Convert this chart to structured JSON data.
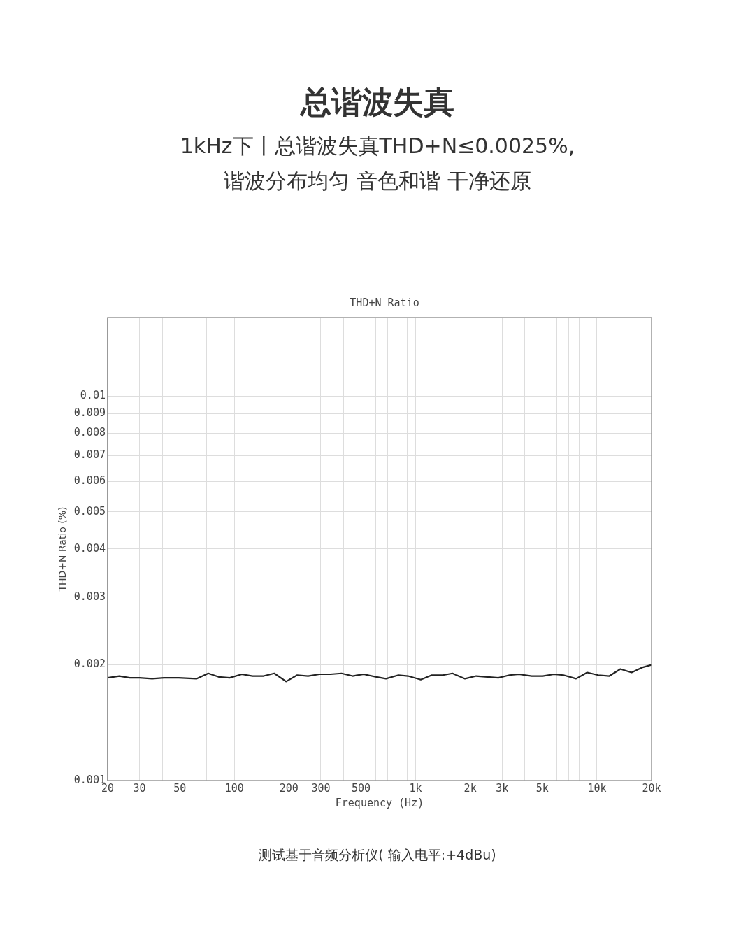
{
  "chart_data": {
    "type": "line",
    "title": "总谐波失真",
    "subtitle": "1kHz下丨总谐波失真THD+N≤0.0025%,\n谐波分布均匀 音色和谐 干净还原",
    "annotations": [
      "THD+N Ratio",
      "测试基于音频分析仪( 输入电平:+4dBu)"
    ],
    "xlabel": "Frequency (Hz)",
    "ylabel": "THD+N Ratio (%)",
    "log": "xy",
    "grid": true,
    "legend": false,
    "marker": "none",
    "line_style": "solid",
    "xlim": [
      20,
      20000
    ],
    "ylim": [
      0.001,
      0.016
    ],
    "xticks": [
      20,
      30,
      {
        "value": 40,
        "label": null
      },
      50,
      {
        "value": 60,
        "label": null
      },
      {
        "value": 70,
        "label": null
      },
      {
        "value": 80,
        "label": null
      },
      {
        "value": 90,
        "label": null
      },
      100,
      200,
      300,
      {
        "value": 400,
        "label": null
      },
      500,
      {
        "value": 600,
        "label": null
      },
      {
        "value": 700,
        "label": null
      },
      {
        "value": 800,
        "label": null
      },
      {
        "value": 900,
        "label": null
      },
      {
        "value": 1000,
        "label": "1k"
      },
      {
        "value": 2000,
        "label": "2k"
      },
      {
        "value": 3000,
        "label": "3k"
      },
      {
        "value": 4000,
        "label": null
      },
      {
        "value": 5000,
        "label": "5k"
      },
      {
        "value": 6000,
        "label": null
      },
      {
        "value": 7000,
        "label": null
      },
      {
        "value": 8000,
        "label": null
      },
      {
        "value": 9000,
        "label": null
      },
      {
        "value": 10000,
        "label": "10k"
      },
      {
        "value": 20000,
        "label": "20k"
      }
    ],
    "yticks": [
      0.001,
      0.002,
      0.003,
      0.004,
      0.005,
      0.006,
      0.007,
      0.008,
      0.009,
      0.01
    ],
    "x": [
      20,
      23.2,
      26.5,
      30,
      35.2,
      40.9,
      49.3,
      61.8,
      71.8,
      81.9,
      94.3,
      110,
      126,
      145,
      166,
      193,
      222,
      255,
      294,
      339,
      390,
      449,
      517,
      607,
      686,
      804,
      908,
      1067,
      1227,
      1413,
      1596,
      1871,
      2157,
      2483,
      2858,
      3290,
      3717,
      4365,
      5024,
      5783,
      6537,
      7671,
      8833,
      10166,
      11700,
      13480,
      15520,
      17870,
      20000
    ],
    "series": [
      {
        "color": "#222222",
        "values": [
          0.00185,
          0.00187,
          0.00185,
          0.00185,
          0.00184,
          0.00185,
          0.00185,
          0.00184,
          0.0019,
          0.00186,
          0.00185,
          0.00189,
          0.00187,
          0.00187,
          0.0019,
          0.00181,
          0.00188,
          0.00187,
          0.00189,
          0.00189,
          0.0019,
          0.00187,
          0.00189,
          0.00186,
          0.00184,
          0.00188,
          0.00187,
          0.00183,
          0.00188,
          0.00188,
          0.0019,
          0.00184,
          0.00187,
          0.00186,
          0.00185,
          0.00188,
          0.00189,
          0.00187,
          0.00187,
          0.00189,
          0.00188,
          0.00184,
          0.00191,
          0.00188,
          0.00187,
          0.00195,
          0.00191,
          0.00197,
          0.002
        ]
      }
    ]
  }
}
